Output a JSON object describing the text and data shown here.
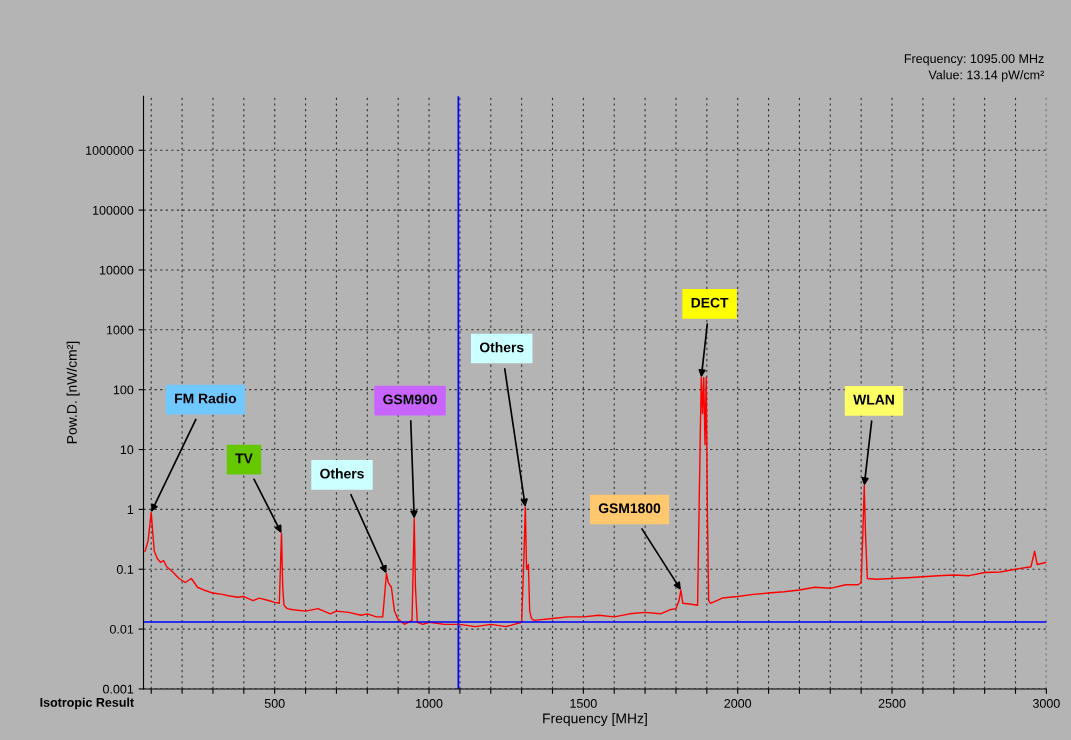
{
  "chart_data": {
    "type": "line",
    "xlabel": "Frequency [MHz]",
    "ylabel": "Pow.D. [nW/cm²]",
    "log": "y",
    "grid": true,
    "legend": false,
    "marker": "none",
    "line_style": "solid",
    "xlim": [
      75,
      3000
    ],
    "ylim": [
      0.001,
      8000000
    ],
    "xticks": [
      {
        "value": 100,
        "label": null
      },
      {
        "value": 200,
        "label": null
      },
      {
        "value": 300,
        "label": null
      },
      {
        "value": 400,
        "label": null
      },
      500,
      {
        "value": 600,
        "label": null
      },
      {
        "value": 700,
        "label": null
      },
      {
        "value": 800,
        "label": null
      },
      {
        "value": 900,
        "label": null
      },
      1000,
      {
        "value": 1100,
        "label": null
      },
      {
        "value": 1200,
        "label": null
      },
      {
        "value": 1300,
        "label": null
      },
      {
        "value": 1400,
        "label": null
      },
      1500,
      {
        "value": 1600,
        "label": null
      },
      {
        "value": 1700,
        "label": null
      },
      {
        "value": 1800,
        "label": null
      },
      {
        "value": 1900,
        "label": null
      },
      2000,
      {
        "value": 2100,
        "label": null
      },
      {
        "value": 2200,
        "label": null
      },
      {
        "value": 2300,
        "label": null
      },
      {
        "value": 2400,
        "label": null
      },
      2500,
      {
        "value": 2600,
        "label": null
      },
      {
        "value": 2700,
        "label": null
      },
      {
        "value": 2800,
        "label": null
      },
      {
        "value": 2900,
        "label": null
      },
      3000
    ],
    "yticks": [
      0.001,
      0.01,
      0.1,
      1,
      10,
      100,
      1000,
      10000,
      100000,
      1000000
    ],
    "series": [
      {
        "color": "#ff0000",
        "x": [
          80,
          90,
          100,
          105,
          110,
          120,
          130,
          140,
          150,
          170,
          190,
          210,
          230,
          250,
          270,
          300,
          330,
          350,
          380,
          400,
          430,
          450,
          480,
          500,
          515,
          522,
          526,
          530,
          540,
          560,
          600,
          640,
          680,
          700,
          740,
          780,
          800,
          830,
          850,
          862,
          868,
          878,
          888,
          898,
          920,
          945,
          952,
          956,
          962,
          980,
          1000,
          1050,
          1100,
          1150,
          1200,
          1250,
          1300,
          1308,
          1312,
          1316,
          1322,
          1326,
          1332,
          1340,
          1400,
          1450,
          1500,
          1550,
          1600,
          1650,
          1700,
          1750,
          1780,
          1800,
          1810,
          1816,
          1822,
          1850,
          1870,
          1878,
          1882,
          1886,
          1890,
          1894,
          1898,
          1902,
          1906,
          1912,
          1950,
          2000,
          2050,
          2100,
          2150,
          2200,
          2250,
          2300,
          2350,
          2390,
          2400,
          2406,
          2410,
          2414,
          2420,
          2450,
          2500,
          2550,
          2600,
          2650,
          2700,
          2750,
          2800,
          2850,
          2900,
          2950,
          2962,
          2970,
          3000
        ],
        "values": [
          0.2,
          0.3,
          0.9,
          0.4,
          0.2,
          0.15,
          0.13,
          0.14,
          0.11,
          0.09,
          0.07,
          0.06,
          0.07,
          0.05,
          0.045,
          0.04,
          0.038,
          0.036,
          0.034,
          0.035,
          0.03,
          0.033,
          0.03,
          0.028,
          0.027,
          0.4,
          0.05,
          0.025,
          0.022,
          0.021,
          0.02,
          0.022,
          0.018,
          0.02,
          0.019,
          0.017,
          0.018,
          0.016,
          0.016,
          0.085,
          0.06,
          0.05,
          0.02,
          0.015,
          0.012,
          0.014,
          0.7,
          0.05,
          0.013,
          0.012,
          0.013,
          0.012,
          0.012,
          0.011,
          0.012,
          0.011,
          0.013,
          0.2,
          1.1,
          0.1,
          0.12,
          0.02,
          0.015,
          0.014,
          0.015,
          0.016,
          0.016,
          0.017,
          0.016,
          0.018,
          0.019,
          0.018,
          0.021,
          0.022,
          0.03,
          0.045,
          0.027,
          0.026,
          0.025,
          10,
          160,
          40,
          160,
          12,
          160,
          0.7,
          0.03,
          0.027,
          0.033,
          0.035,
          0.038,
          0.04,
          0.042,
          0.045,
          0.05,
          0.048,
          0.055,
          0.055,
          0.06,
          0.5,
          2.5,
          0.4,
          0.07,
          0.068,
          0.07,
          0.072,
          0.075,
          0.078,
          0.08,
          0.078,
          0.088,
          0.09,
          0.1,
          0.11,
          0.2,
          0.12,
          0.13
        ]
      }
    ],
    "ref_lines": [
      {
        "axis": "x",
        "value": 1095,
        "color": "#0000ff"
      },
      {
        "axis": "y",
        "value": 0.01314,
        "color": "#0000ff"
      }
    ],
    "annotations": [
      {
        "text": "FM Radio",
        "x": 100,
        "y": 0.9
      },
      {
        "text": "TV",
        "x": 522,
        "y": 0.4
      },
      {
        "text": "Others",
        "x": 862,
        "y": 0.085
      },
      {
        "text": "GSM900",
        "x": 952,
        "y": 0.7
      },
      {
        "text": "Others",
        "x": 1312,
        "y": 1.1
      },
      {
        "text": "GSM1800",
        "x": 1816,
        "y": 0.045
      },
      {
        "text": "DECT",
        "x": 1882,
        "y": 160
      },
      {
        "text": "WLAN",
        "x": 2410,
        "y": 2.5
      },
      "Frequency: 1095.00 MHz",
      "Value: 13.14 pW/cm²",
      "Isotropic Result"
    ]
  }
}
